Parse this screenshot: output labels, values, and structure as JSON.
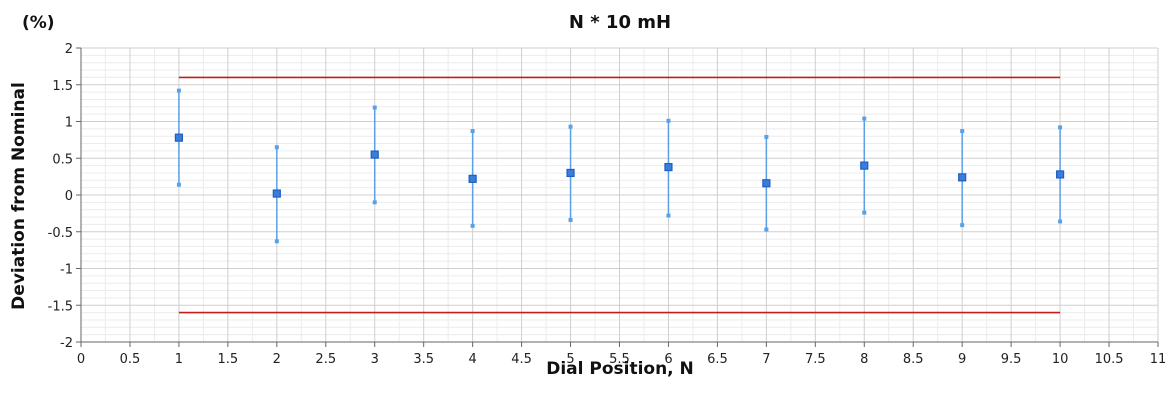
{
  "chart_data": {
    "type": "scatter",
    "title": "N * 10 mH",
    "unit_label": "(%)",
    "xlabel": "Dial Position, N",
    "ylabel": "Deviation from Nominal",
    "xlim": [
      0,
      11
    ],
    "ylim": [
      -2,
      2
    ],
    "x_ticks": [
      "0",
      "0.5",
      "1",
      "1.5",
      "2",
      "2.5",
      "3",
      "3.5",
      "4",
      "4.5",
      "5",
      "5.5",
      "6",
      "6.5",
      "7",
      "7.5",
      "8",
      "8.5",
      "9",
      "9.5",
      "10",
      "10.5",
      "11"
    ],
    "y_ticks": [
      "2",
      "1.5",
      "1",
      "0.5",
      "0",
      "-0.5",
      "-1",
      "-1.5",
      "-2"
    ],
    "grid": true,
    "points": [
      {
        "x": 1,
        "y": 0.78,
        "low": 0.14,
        "high": 1.42
      },
      {
        "x": 2,
        "y": 0.02,
        "low": -0.63,
        "high": 0.65
      },
      {
        "x": 3,
        "y": 0.55,
        "low": -0.1,
        "high": 1.19
      },
      {
        "x": 4,
        "y": 0.22,
        "low": -0.42,
        "high": 0.87
      },
      {
        "x": 5,
        "y": 0.3,
        "low": -0.34,
        "high": 0.93
      },
      {
        "x": 6,
        "y": 0.38,
        "low": -0.28,
        "high": 1.01
      },
      {
        "x": 7,
        "y": 0.16,
        "low": -0.47,
        "high": 0.79
      },
      {
        "x": 8,
        "y": 0.4,
        "low": -0.24,
        "high": 1.04
      },
      {
        "x": 9,
        "y": 0.24,
        "low": -0.41,
        "high": 0.87
      },
      {
        "x": 10,
        "y": 0.28,
        "low": -0.36,
        "high": 0.92
      }
    ],
    "limits": [
      {
        "y": 1.6,
        "x_from": 1,
        "x_to": 10
      },
      {
        "y": -1.6,
        "x_from": 1,
        "x_to": 10
      }
    ],
    "colors": {
      "marker": "#1f5fbf",
      "marker_fill": "#3b7ddd",
      "errorbar": "#5aa0e6",
      "limit": "#c0201a",
      "grid_major": "#cfcfcf",
      "grid_minor": "#ececec",
      "axis": "#666666"
    }
  }
}
